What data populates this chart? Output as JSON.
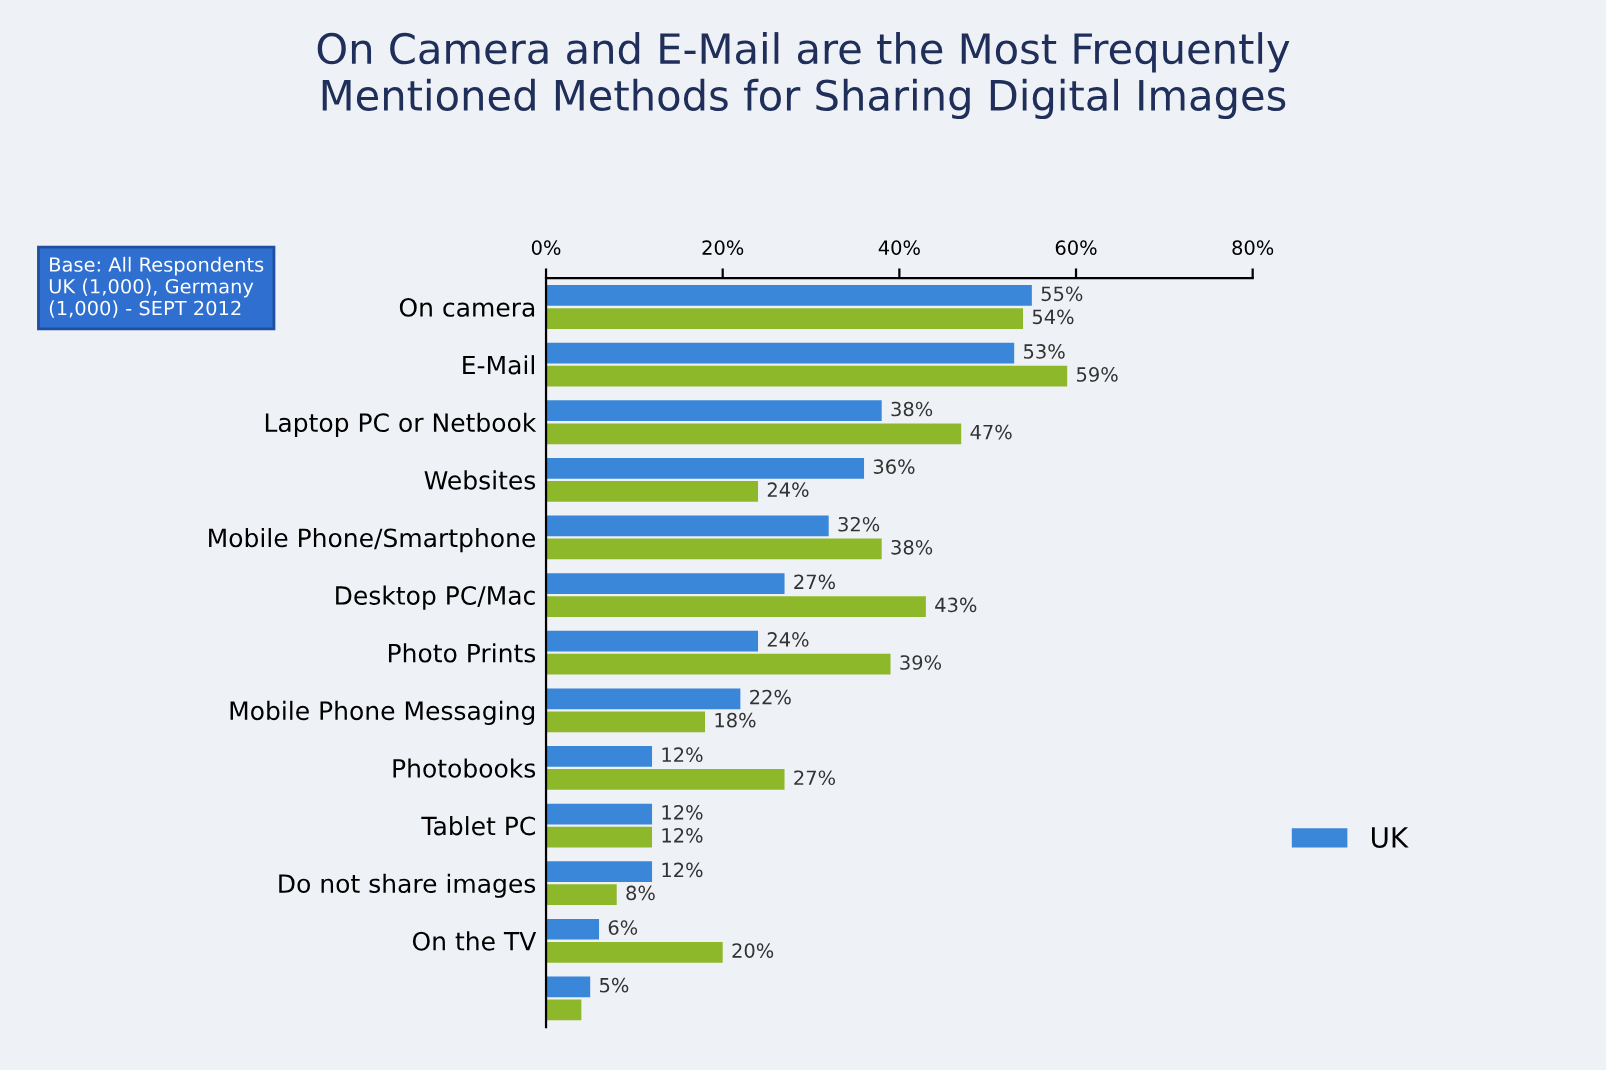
{
  "chart_data": {
    "type": "bar",
    "orientation": "horizontal",
    "title": "On Camera and E-Mail are the Most Frequently\nMentioned Methods for Sharing Digital Images",
    "annotations": [
      "Base: All Respondents\nUK (1,000), Germany\n(1,000) - SEPT 2012"
    ],
    "categories": [
      "On camera",
      "E-Mail",
      "Laptop PC or Netbook",
      "Websites",
      "Mobile Phone/Smartphone",
      "Desktop PC/Mac",
      "Photo Prints",
      "Mobile Phone Messaging",
      "Photobooks",
      "Tablet PC",
      "Do not share images",
      "On the TV",
      null
    ],
    "series": [
      {
        "name": "UK",
        "color": "#3a86d8",
        "values": [
          55,
          53,
          38,
          36,
          32,
          27,
          24,
          22,
          12,
          12,
          12,
          6,
          5
        ],
        "value_labels": [
          "55%",
          "53%",
          "38%",
          "36%",
          "32%",
          "27%",
          "24%",
          "22%",
          "12%",
          "12%",
          "12%",
          "6%",
          "5%"
        ]
      },
      {
        "color": "#8db82a",
        "values": [
          54,
          59,
          47,
          24,
          38,
          43,
          39,
          18,
          27,
          12,
          8,
          20,
          4
        ],
        "value_labels": [
          "54%",
          "59%",
          "47%",
          "24%",
          "38%",
          "43%",
          "39%",
          "18%",
          "27%",
          "12%",
          "8%",
          "20%",
          null
        ]
      }
    ],
    "xlim": [
      0,
      80
    ],
    "xticks": [
      {
        "value": 0,
        "label": "0%"
      },
      {
        "value": 20,
        "label": "20%"
      },
      {
        "value": 40,
        "label": "40%"
      },
      {
        "value": 60,
        "label": "60%"
      },
      {
        "value": 80,
        "label": "80%"
      }
    ],
    "legend": "right",
    "grid": false
  }
}
